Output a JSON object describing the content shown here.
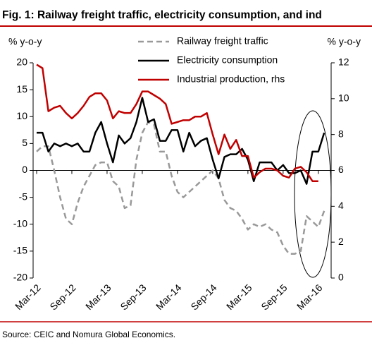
{
  "chart_data": {
    "type": "line",
    "title": "Fig. 1: Railway freight traffic, electricity consumption, and ind",
    "y_label": "% y-o-y",
    "y2_label": "% y-o-y",
    "source": "Source: CEIC and Nomura Global Economics.",
    "categories": [
      "Mar-12",
      null,
      null,
      null,
      null,
      null,
      "Sep-12",
      null,
      null,
      null,
      null,
      null,
      "Mar-13",
      null,
      null,
      null,
      null,
      null,
      "Sep-13",
      null,
      null,
      null,
      null,
      null,
      "Mar-14",
      null,
      null,
      null,
      null,
      null,
      "Sep-14",
      null,
      null,
      null,
      null,
      null,
      "Mar-15",
      null,
      null,
      null,
      null,
      null,
      "Sep-15",
      null,
      null,
      null,
      null,
      null,
      "Mar-16",
      null
    ],
    "ylim": [
      -20,
      20
    ],
    "yticks": [
      -20,
      -15,
      -10,
      -5,
      0,
      5,
      10,
      15,
      20
    ],
    "y2lim": [
      0,
      12
    ],
    "y2ticks": [
      0,
      2,
      4,
      6,
      8,
      10,
      12
    ],
    "series": [
      {
        "name": "Railway freight traffic",
        "color": "#999999",
        "dashed": true,
        "values": [
          3.5,
          4.5,
          4.5,
          0,
          -5,
          -9,
          -10,
          -6,
          -3,
          -1,
          1,
          1.5,
          1.5,
          -2,
          -3,
          -7,
          -6.5,
          2,
          7,
          9,
          8.5,
          3.5,
          3.5,
          -1,
          -4,
          -5,
          -4,
          -3,
          -2,
          -1,
          0,
          -1.5,
          -5.5,
          -7,
          -7.5,
          -9,
          -11,
          -10,
          -10.5,
          -10,
          -11,
          -11.5,
          -14,
          -15.5,
          -15.5,
          -15,
          -8.5,
          -9.5,
          -10.5,
          -7.5
        ]
      },
      {
        "name": "Electricity consumption",
        "color": "#000000",
        "values": [
          7,
          7,
          3.5,
          5,
          4.5,
          5,
          4.5,
          5,
          3.5,
          3.5,
          7,
          9,
          5,
          1.5,
          6.5,
          5,
          6,
          9,
          13.5,
          9,
          9.5,
          5.5,
          5.5,
          7.5,
          7.5,
          3.5,
          7,
          4.5,
          5.5,
          6,
          2,
          -1.5,
          2.5,
          3,
          3,
          4,
          2,
          -2,
          1.5,
          1.5,
          1.5,
          0,
          1,
          -0.5,
          -0.5,
          0,
          -2.5,
          3.5,
          3.5,
          7
        ]
      },
      {
        "name": "Industrial production, rhs",
        "color": "#c00000",
        "axis": "y2",
        "values": [
          11.9,
          11.7,
          9.3,
          9.5,
          9.6,
          9.2,
          8.9,
          9.2,
          9.6,
          10.1,
          10.3,
          10.3,
          9.9,
          8.9,
          9.3,
          9.2,
          9.2,
          9.7,
          10.4,
          10.4,
          10.2,
          10.0,
          9.7,
          8.6,
          8.7,
          8.8,
          8.8,
          9.0,
          9.0,
          9.2,
          8.0,
          6.9,
          8.0,
          7.2,
          7.7,
          6.8,
          6.8,
          5.6,
          5.9,
          6.1,
          6.1,
          6.0,
          5.7,
          5.6,
          6.1,
          6.2,
          5.9,
          5.4,
          5.4,
          null
        ]
      }
    ]
  }
}
